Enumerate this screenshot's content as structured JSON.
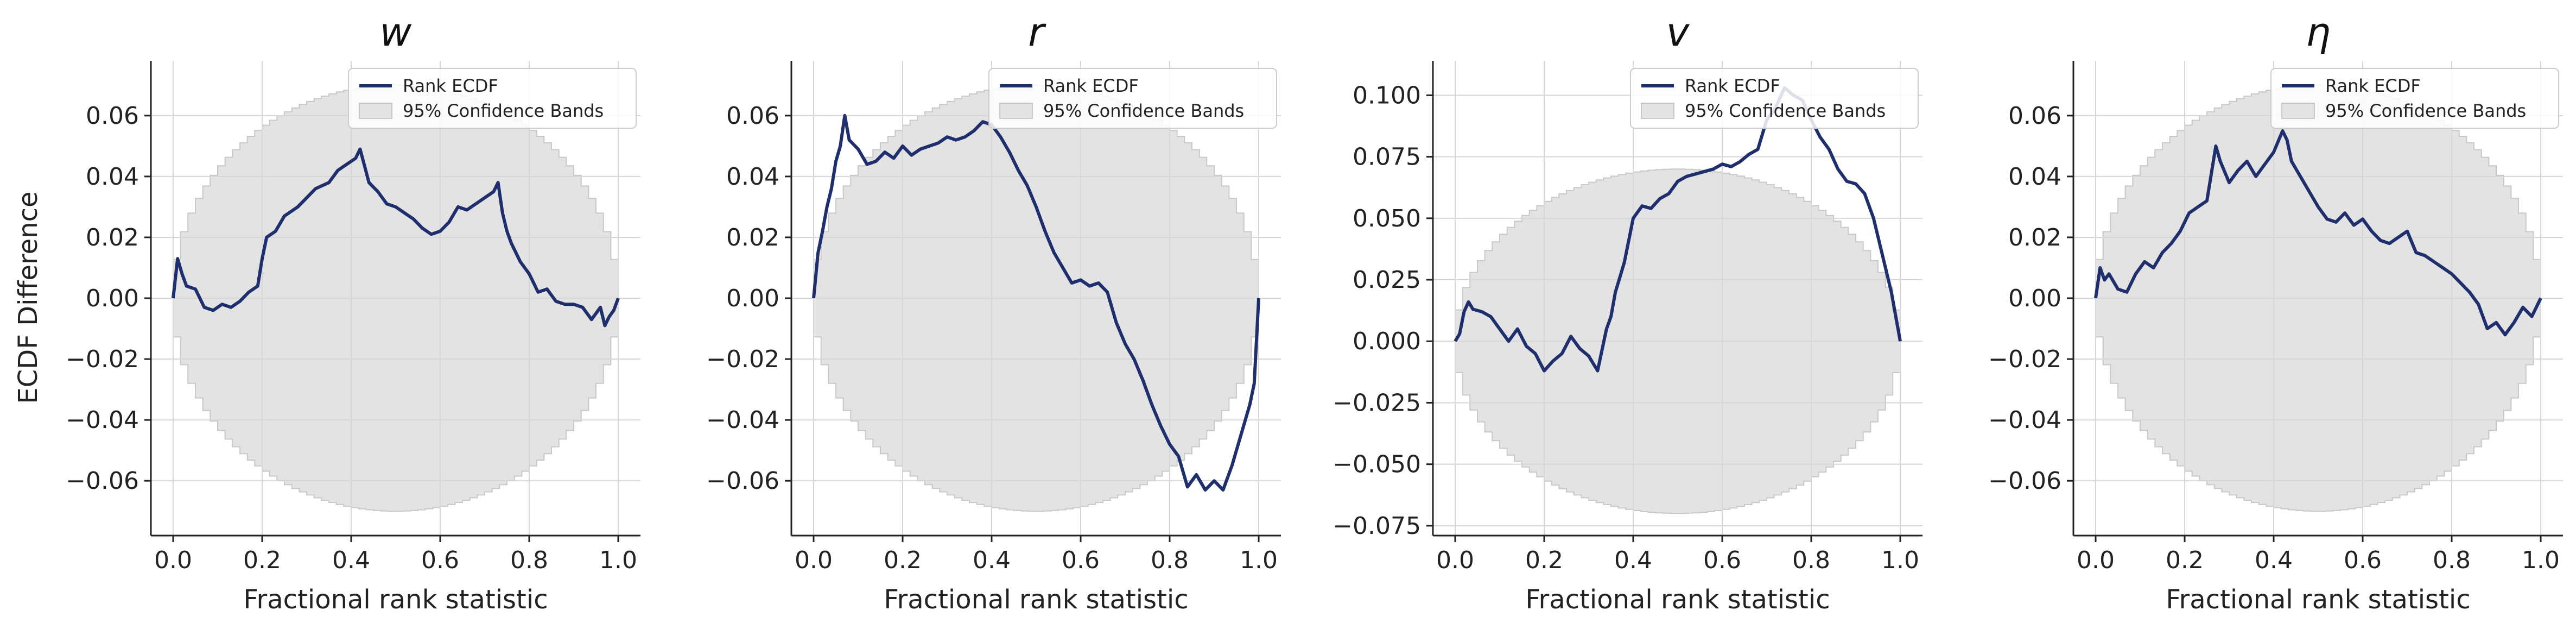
{
  "figure": {
    "ylabel": "ECDF Difference",
    "series_color": "#1f2f6e",
    "band_color": "#e3e3e3",
    "band_edge_color": "#c8c8c8",
    "grid_color": "#d7d7d7"
  },
  "chart_data": [
    {
      "type": "line",
      "title": "w",
      "xlabel": "Fractional rank statistic",
      "ylabel": "ECDF Difference",
      "xlim": [
        -0.05,
        1.05
      ],
      "ylim": [
        -0.078,
        0.078
      ],
      "xticks": [
        0.0,
        0.2,
        0.4,
        0.6,
        0.8,
        1.0
      ],
      "xtick_labels": [
        "0.0",
        "0.2",
        "0.4",
        "0.6",
        "0.8",
        "1.0"
      ],
      "yticks": [
        -0.06,
        -0.04,
        -0.02,
        0.0,
        0.02,
        0.04,
        0.06
      ],
      "ytick_labels": [
        "−0.06",
        "−0.04",
        "−0.02",
        "0.00",
        "0.02",
        "0.04",
        "0.06"
      ],
      "grid": true,
      "legend": {
        "position": "top-right",
        "entries": [
          "Rank ECDF",
          "95% Confidence Bands"
        ]
      },
      "band_halfwidth": 0.07,
      "series": [
        {
          "name": "Rank ECDF",
          "x": [
            0.0,
            0.01,
            0.02,
            0.03,
            0.05,
            0.07,
            0.09,
            0.11,
            0.13,
            0.15,
            0.17,
            0.19,
            0.2,
            0.21,
            0.23,
            0.25,
            0.28,
            0.3,
            0.32,
            0.35,
            0.37,
            0.39,
            0.41,
            0.42,
            0.44,
            0.46,
            0.48,
            0.5,
            0.52,
            0.54,
            0.56,
            0.58,
            0.6,
            0.62,
            0.64,
            0.66,
            0.68,
            0.7,
            0.72,
            0.73,
            0.74,
            0.75,
            0.76,
            0.77,
            0.78,
            0.79,
            0.8,
            0.82,
            0.84,
            0.86,
            0.88,
            0.9,
            0.92,
            0.94,
            0.96,
            0.97,
            0.98,
            0.99,
            1.0
          ],
          "y": [
            0.0,
            0.013,
            0.008,
            0.004,
            0.003,
            -0.003,
            -0.004,
            -0.002,
            -0.003,
            -0.001,
            0.002,
            0.004,
            0.013,
            0.02,
            0.022,
            0.027,
            0.03,
            0.033,
            0.036,
            0.038,
            0.042,
            0.044,
            0.046,
            0.049,
            0.038,
            0.035,
            0.031,
            0.03,
            0.028,
            0.026,
            0.023,
            0.021,
            0.022,
            0.025,
            0.03,
            0.029,
            0.031,
            0.033,
            0.035,
            0.038,
            0.028,
            0.022,
            0.018,
            0.015,
            0.012,
            0.01,
            0.008,
            0.002,
            0.003,
            -0.001,
            -0.002,
            -0.002,
            -0.003,
            -0.007,
            -0.003,
            -0.009,
            -0.006,
            -0.004,
            0.0
          ]
        }
      ]
    },
    {
      "type": "line",
      "title": "r",
      "xlabel": "Fractional rank statistic",
      "ylabel": "",
      "xlim": [
        -0.05,
        1.05
      ],
      "ylim": [
        -0.078,
        0.078
      ],
      "xticks": [
        0.0,
        0.2,
        0.4,
        0.6,
        0.8,
        1.0
      ],
      "xtick_labels": [
        "0.0",
        "0.2",
        "0.4",
        "0.6",
        "0.8",
        "1.0"
      ],
      "yticks": [
        -0.06,
        -0.04,
        -0.02,
        0.0,
        0.02,
        0.04,
        0.06
      ],
      "ytick_labels": [
        "−0.06",
        "−0.04",
        "−0.02",
        "0.00",
        "0.02",
        "0.04",
        "0.06"
      ],
      "grid": true,
      "legend": {
        "position": "top-right",
        "entries": [
          "Rank ECDF",
          "95% Confidence Bands"
        ]
      },
      "band_halfwidth": 0.07,
      "series": [
        {
          "name": "Rank ECDF",
          "x": [
            0.0,
            0.01,
            0.02,
            0.03,
            0.04,
            0.05,
            0.06,
            0.07,
            0.08,
            0.1,
            0.12,
            0.14,
            0.16,
            0.18,
            0.2,
            0.22,
            0.24,
            0.26,
            0.28,
            0.3,
            0.32,
            0.34,
            0.36,
            0.38,
            0.4,
            0.42,
            0.44,
            0.46,
            0.48,
            0.5,
            0.52,
            0.54,
            0.56,
            0.58,
            0.6,
            0.62,
            0.64,
            0.66,
            0.68,
            0.7,
            0.72,
            0.74,
            0.76,
            0.78,
            0.8,
            0.82,
            0.84,
            0.86,
            0.88,
            0.9,
            0.92,
            0.94,
            0.96,
            0.97,
            0.98,
            0.99,
            1.0
          ],
          "y": [
            0.0,
            0.015,
            0.022,
            0.03,
            0.036,
            0.045,
            0.05,
            0.06,
            0.052,
            0.049,
            0.044,
            0.045,
            0.048,
            0.046,
            0.05,
            0.047,
            0.049,
            0.05,
            0.051,
            0.053,
            0.052,
            0.053,
            0.055,
            0.058,
            0.057,
            0.053,
            0.048,
            0.042,
            0.037,
            0.03,
            0.022,
            0.015,
            0.01,
            0.005,
            0.006,
            0.004,
            0.005,
            0.002,
            -0.008,
            -0.015,
            -0.02,
            -0.027,
            -0.035,
            -0.042,
            -0.048,
            -0.052,
            -0.062,
            -0.058,
            -0.063,
            -0.06,
            -0.063,
            -0.055,
            -0.045,
            -0.04,
            -0.035,
            -0.028,
            0.0
          ]
        }
      ]
    },
    {
      "type": "line",
      "title": "v",
      "xlabel": "Fractional rank statistic",
      "ylabel": "",
      "xlim": [
        -0.05,
        1.05
      ],
      "ylim": [
        -0.079,
        0.114
      ],
      "xticks": [
        0.0,
        0.2,
        0.4,
        0.6,
        0.8,
        1.0
      ],
      "xtick_labels": [
        "0.0",
        "0.2",
        "0.4",
        "0.6",
        "0.8",
        "1.0"
      ],
      "yticks": [
        -0.075,
        -0.05,
        -0.025,
        0.0,
        0.025,
        0.05,
        0.075,
        0.1
      ],
      "ytick_labels": [
        "−0.075",
        "−0.050",
        "−0.025",
        "0.000",
        "0.025",
        "0.050",
        "0.075",
        "0.100"
      ],
      "grid": true,
      "legend": {
        "position": "top-right",
        "entries": [
          "Rank ECDF",
          "95% Confidence Bands"
        ]
      },
      "band_halfwidth": 0.07,
      "series": [
        {
          "name": "Rank ECDF",
          "x": [
            0.0,
            0.01,
            0.02,
            0.03,
            0.04,
            0.06,
            0.08,
            0.1,
            0.12,
            0.14,
            0.16,
            0.18,
            0.2,
            0.22,
            0.24,
            0.26,
            0.28,
            0.3,
            0.32,
            0.34,
            0.35,
            0.36,
            0.38,
            0.4,
            0.42,
            0.44,
            0.46,
            0.48,
            0.5,
            0.52,
            0.54,
            0.56,
            0.58,
            0.6,
            0.62,
            0.64,
            0.66,
            0.68,
            0.7,
            0.72,
            0.74,
            0.76,
            0.78,
            0.8,
            0.82,
            0.84,
            0.86,
            0.88,
            0.9,
            0.92,
            0.94,
            0.96,
            0.98,
            1.0
          ],
          "y": [
            0.0,
            0.003,
            0.012,
            0.016,
            0.013,
            0.012,
            0.01,
            0.005,
            0.0,
            0.005,
            -0.002,
            -0.005,
            -0.012,
            -0.008,
            -0.005,
            0.002,
            -0.003,
            -0.006,
            -0.012,
            0.005,
            0.01,
            0.02,
            0.032,
            0.05,
            0.055,
            0.054,
            0.058,
            0.06,
            0.065,
            0.067,
            0.068,
            0.069,
            0.07,
            0.072,
            0.071,
            0.073,
            0.076,
            0.078,
            0.09,
            0.095,
            0.103,
            0.1,
            0.098,
            0.09,
            0.083,
            0.078,
            0.07,
            0.065,
            0.064,
            0.06,
            0.05,
            0.035,
            0.02,
            0.0
          ]
        }
      ]
    },
    {
      "type": "line",
      "title": "η",
      "xlabel": "Fractional rank statistic",
      "ylabel": "",
      "xlim": [
        -0.05,
        1.05
      ],
      "ylim": [
        -0.078,
        0.078
      ],
      "xticks": [
        0.0,
        0.2,
        0.4,
        0.6,
        0.8,
        1.0
      ],
      "xtick_labels": [
        "0.0",
        "0.2",
        "0.4",
        "0.6",
        "0.8",
        "1.0"
      ],
      "yticks": [
        -0.06,
        -0.04,
        -0.02,
        0.0,
        0.02,
        0.04,
        0.06
      ],
      "ytick_labels": [
        "−0.06",
        "−0.04",
        "−0.02",
        "0.00",
        "0.02",
        "0.04",
        "0.06"
      ],
      "grid": true,
      "legend": {
        "position": "top-right",
        "entries": [
          "Rank ECDF",
          "95% Confidence Bands"
        ]
      },
      "band_halfwidth": 0.07,
      "series": [
        {
          "name": "Rank ECDF",
          "x": [
            0.0,
            0.01,
            0.02,
            0.03,
            0.05,
            0.07,
            0.09,
            0.11,
            0.13,
            0.15,
            0.17,
            0.19,
            0.21,
            0.23,
            0.25,
            0.27,
            0.28,
            0.3,
            0.32,
            0.34,
            0.36,
            0.38,
            0.4,
            0.42,
            0.43,
            0.44,
            0.46,
            0.48,
            0.5,
            0.52,
            0.54,
            0.56,
            0.58,
            0.6,
            0.62,
            0.64,
            0.66,
            0.68,
            0.7,
            0.72,
            0.74,
            0.76,
            0.78,
            0.8,
            0.82,
            0.84,
            0.86,
            0.88,
            0.9,
            0.92,
            0.94,
            0.96,
            0.98,
            1.0
          ],
          "y": [
            0.0,
            0.01,
            0.006,
            0.008,
            0.003,
            0.002,
            0.008,
            0.012,
            0.01,
            0.015,
            0.018,
            0.022,
            0.028,
            0.03,
            0.032,
            0.05,
            0.045,
            0.038,
            0.042,
            0.045,
            0.04,
            0.044,
            0.048,
            0.055,
            0.052,
            0.045,
            0.04,
            0.035,
            0.03,
            0.026,
            0.025,
            0.028,
            0.024,
            0.026,
            0.022,
            0.019,
            0.018,
            0.02,
            0.022,
            0.015,
            0.014,
            0.012,
            0.01,
            0.008,
            0.005,
            0.002,
            -0.002,
            -0.01,
            -0.008,
            -0.012,
            -0.008,
            -0.003,
            -0.006,
            0.0
          ]
        }
      ]
    }
  ]
}
